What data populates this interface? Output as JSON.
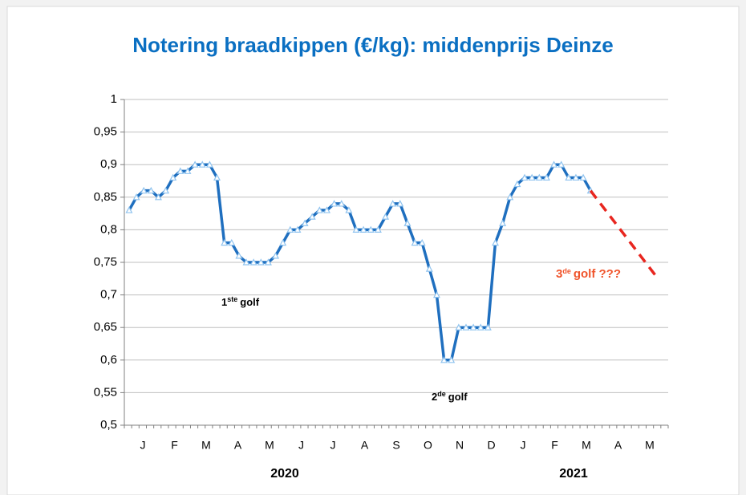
{
  "chart_data": {
    "type": "line",
    "title": "Notering braadkippen (€/kg): middenprijs Deinze",
    "xlim": [
      -0.65,
      73.6
    ],
    "ylim": [
      0.5,
      1
    ],
    "yticks": [
      {
        "value": 0.5,
        "label": "0,5"
      },
      {
        "value": 0.55,
        "label": "0,55"
      },
      {
        "value": 0.6,
        "label": "0,6"
      },
      {
        "value": 0.65,
        "label": "0,65"
      },
      {
        "value": 0.7,
        "label": "0,7"
      },
      {
        "value": 0.75,
        "label": "0,75"
      },
      {
        "value": 0.8,
        "label": "0,8"
      },
      {
        "value": 0.85,
        "label": "0,85"
      },
      {
        "value": 0.9,
        "label": "0,9"
      },
      {
        "value": 0.95,
        "label": "0,95"
      },
      {
        "value": 1,
        "label": "1"
      }
    ],
    "grid": true,
    "month_labels": [
      "J",
      "F",
      "M",
      "A",
      "M",
      "J",
      "J",
      "A",
      "S",
      "O",
      "N",
      "D",
      "J",
      "F",
      "M",
      "A",
      "M"
    ],
    "year_labels": [
      "2020",
      "2021"
    ],
    "series": [
      {
        "color": "#1f6fbf",
        "marker_color": "#8fc3ef",
        "x": [
          0,
          1,
          2,
          3,
          4,
          5,
          6,
          7,
          8,
          9,
          10,
          11,
          12,
          13,
          14,
          15,
          16,
          17,
          18,
          19,
          20,
          21,
          22,
          23,
          24,
          25,
          26,
          27,
          28,
          29,
          30,
          31,
          32,
          33,
          34,
          35,
          36,
          37,
          38,
          39,
          40,
          41,
          42,
          43,
          44,
          45,
          46,
          47,
          48,
          49,
          50,
          51,
          52,
          53,
          54,
          55,
          56,
          57,
          58,
          59,
          60,
          61,
          62,
          63
        ],
        "values": [
          0.83,
          0.85,
          0.86,
          0.86,
          0.85,
          0.86,
          0.88,
          0.89,
          0.89,
          0.9,
          0.9,
          0.9,
          0.88,
          0.78,
          0.78,
          0.76,
          0.75,
          0.75,
          0.75,
          0.75,
          0.76,
          0.78,
          0.8,
          0.8,
          0.81,
          0.82,
          0.83,
          0.83,
          0.84,
          0.84,
          0.83,
          0.8,
          0.8,
          0.8,
          0.8,
          0.82,
          0.84,
          0.84,
          0.81,
          0.78,
          0.78,
          0.74,
          0.7,
          0.6,
          0.6,
          0.65,
          0.65,
          0.65,
          0.65,
          0.65,
          0.78,
          0.81,
          0.85,
          0.87,
          0.88,
          0.88,
          0.88,
          0.88,
          0.9,
          0.9,
          0.88,
          0.88,
          0.88,
          0.86
        ]
      },
      {
        "color": "#e8261f",
        "dashed": true,
        "x": [
          63,
          72.2
        ],
        "values": [
          0.86,
          0.725
        ]
      }
    ],
    "annotations": [
      {
        "text": "1",
        "sup": "ste",
        "rest": "golf",
        "color": "#000000"
      },
      {
        "text": "2",
        "sup": "de",
        "rest": "golf",
        "color": "#000000"
      },
      {
        "text": "3",
        "sup": "de",
        "rest": "golf ???",
        "color": "#f0542b"
      }
    ]
  }
}
